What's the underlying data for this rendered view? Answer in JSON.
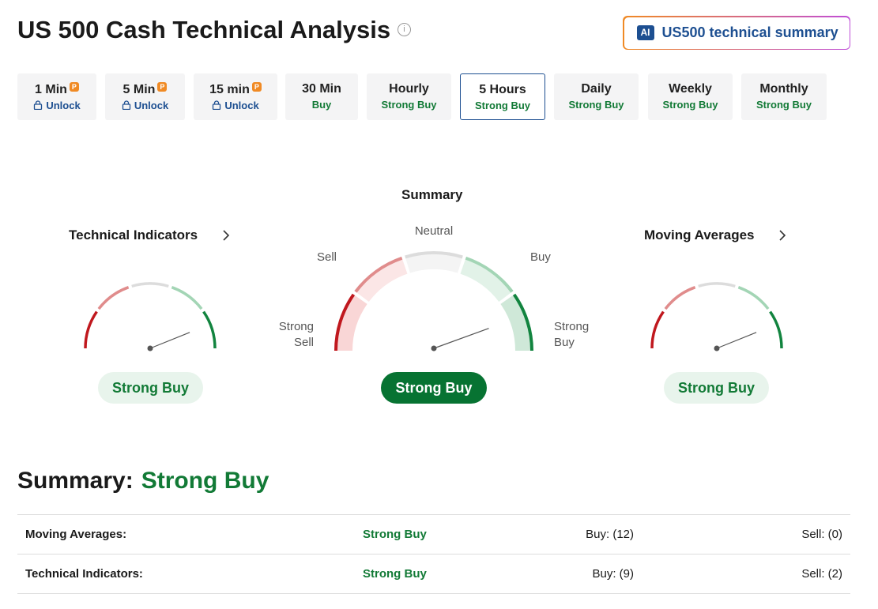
{
  "header": {
    "title": "US 500 Cash Technical Analysis",
    "ai_icon": "AI",
    "ai_button": "US500 technical summary"
  },
  "premium_badge": "P",
  "timeframes": {
    "selected": 5,
    "tabs": [
      {
        "label": "1 Min",
        "status": "Unlock",
        "locked": true
      },
      {
        "label": "5 Min",
        "status": "Unlock",
        "locked": true
      },
      {
        "label": "15 min",
        "status": "Unlock",
        "locked": true
      },
      {
        "label": "30 Min",
        "status": "Buy",
        "locked": false
      },
      {
        "label": "Hourly",
        "status": "Strong Buy",
        "locked": false
      },
      {
        "label": "5 Hours",
        "status": "Strong Buy",
        "locked": false
      },
      {
        "label": "Daily",
        "status": "Strong Buy",
        "locked": false
      },
      {
        "label": "Weekly",
        "status": "Strong Buy",
        "locked": false
      },
      {
        "label": "Monthly",
        "status": "Strong Buy",
        "locked": false
      }
    ]
  },
  "gauges": {
    "technical": {
      "title": "Technical Indicators",
      "result": "Strong Buy"
    },
    "summary": {
      "title": "Summary",
      "result": "Strong Buy",
      "neutral": "Neutral",
      "sell": "Sell",
      "buy": "Buy",
      "strong_sell": "Strong Sell",
      "strong_buy": "Strong Buy"
    },
    "moving": {
      "title": "Moving Averages",
      "result": "Strong Buy"
    }
  },
  "summary": {
    "label": "Summary:",
    "value": "Strong Buy",
    "rows": [
      {
        "name": "Moving Averages:",
        "signal": "Strong Buy",
        "buy": "Buy: (12)",
        "sell": "Sell: (0)"
      },
      {
        "name": "Technical Indicators:",
        "signal": "Strong Buy",
        "buy": "Buy: (9)",
        "sell": "Sell: (2)"
      }
    ]
  }
}
